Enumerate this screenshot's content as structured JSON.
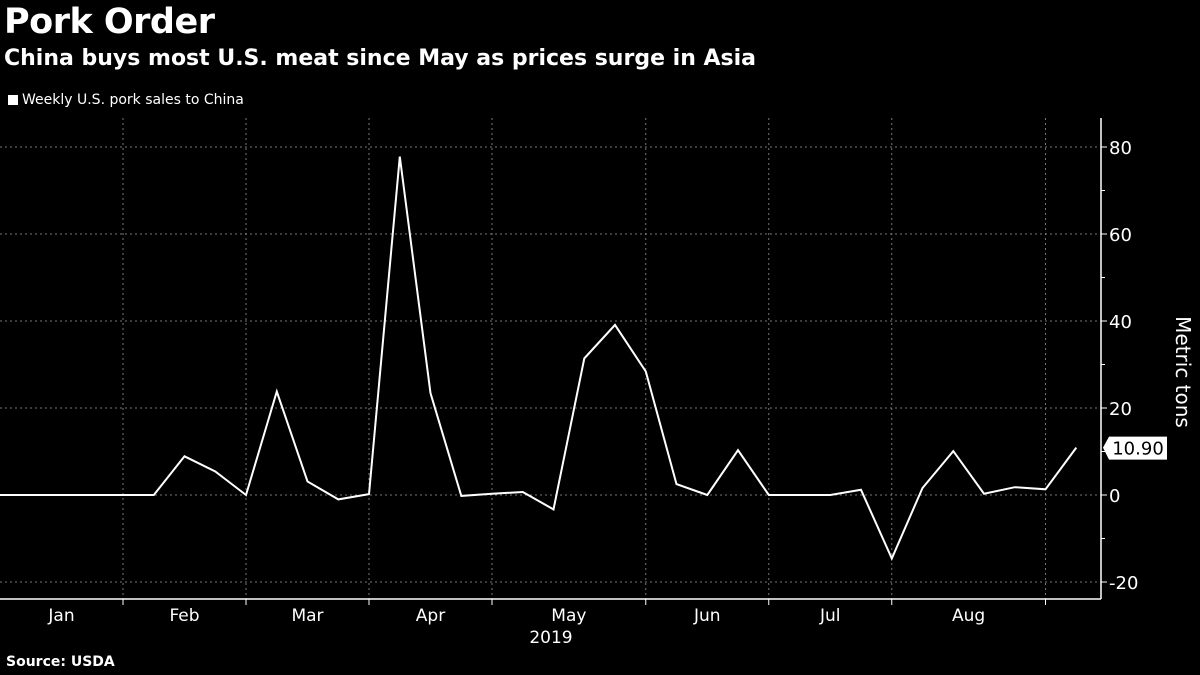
{
  "header": {
    "title": "Pork Order",
    "subtitle": "China buys most U.S. meat since May as prices surge in Asia"
  },
  "footer": {
    "source": "Source: USDA"
  },
  "chart_data": {
    "type": "line",
    "title": "Pork Order",
    "subtitle": "China buys most U.S. meat since May as prices surge in Asia",
    "xlabel": "2019",
    "ylabel": "Metric tons",
    "ylim": [
      -25,
      87
    ],
    "yticks": [
      -20,
      0,
      20,
      40,
      60,
      80
    ],
    "ytick_labels": [
      "-20",
      "0",
      "20",
      "40",
      "60",
      "80"
    ],
    "month_labels": [
      "Jan",
      "Feb",
      "Mar",
      "Apr",
      "May",
      "Jun",
      "Jul",
      "Aug"
    ],
    "month_boundaries_week_index": [
      4,
      8,
      12,
      16,
      21,
      25,
      29,
      34
    ],
    "month_label_week_pos": [
      2,
      6,
      10,
      14,
      18.5,
      23,
      27,
      31.5
    ],
    "grid": true,
    "legend": {
      "position": "top-left",
      "entries": [
        "Weekly U.S. pork sales to China"
      ]
    },
    "last_value_label": "10.90",
    "series": [
      {
        "name": "Weekly U.S. pork sales to China",
        "color": "#ffffff",
        "values": [
          0,
          0,
          0,
          0,
          0,
          0,
          8.9,
          5.4,
          0,
          23.8,
          3.1,
          -1,
          0.2,
          77.8,
          23.4,
          -0.2,
          0.3,
          0.7,
          -3.3,
          31.4,
          39.1,
          28.4,
          2.5,
          0,
          10.3,
          0,
          0,
          0,
          1.2,
          -14.6,
          1.6,
          10.1,
          0.3,
          1.8,
          1.3,
          10.9
        ]
      }
    ]
  }
}
